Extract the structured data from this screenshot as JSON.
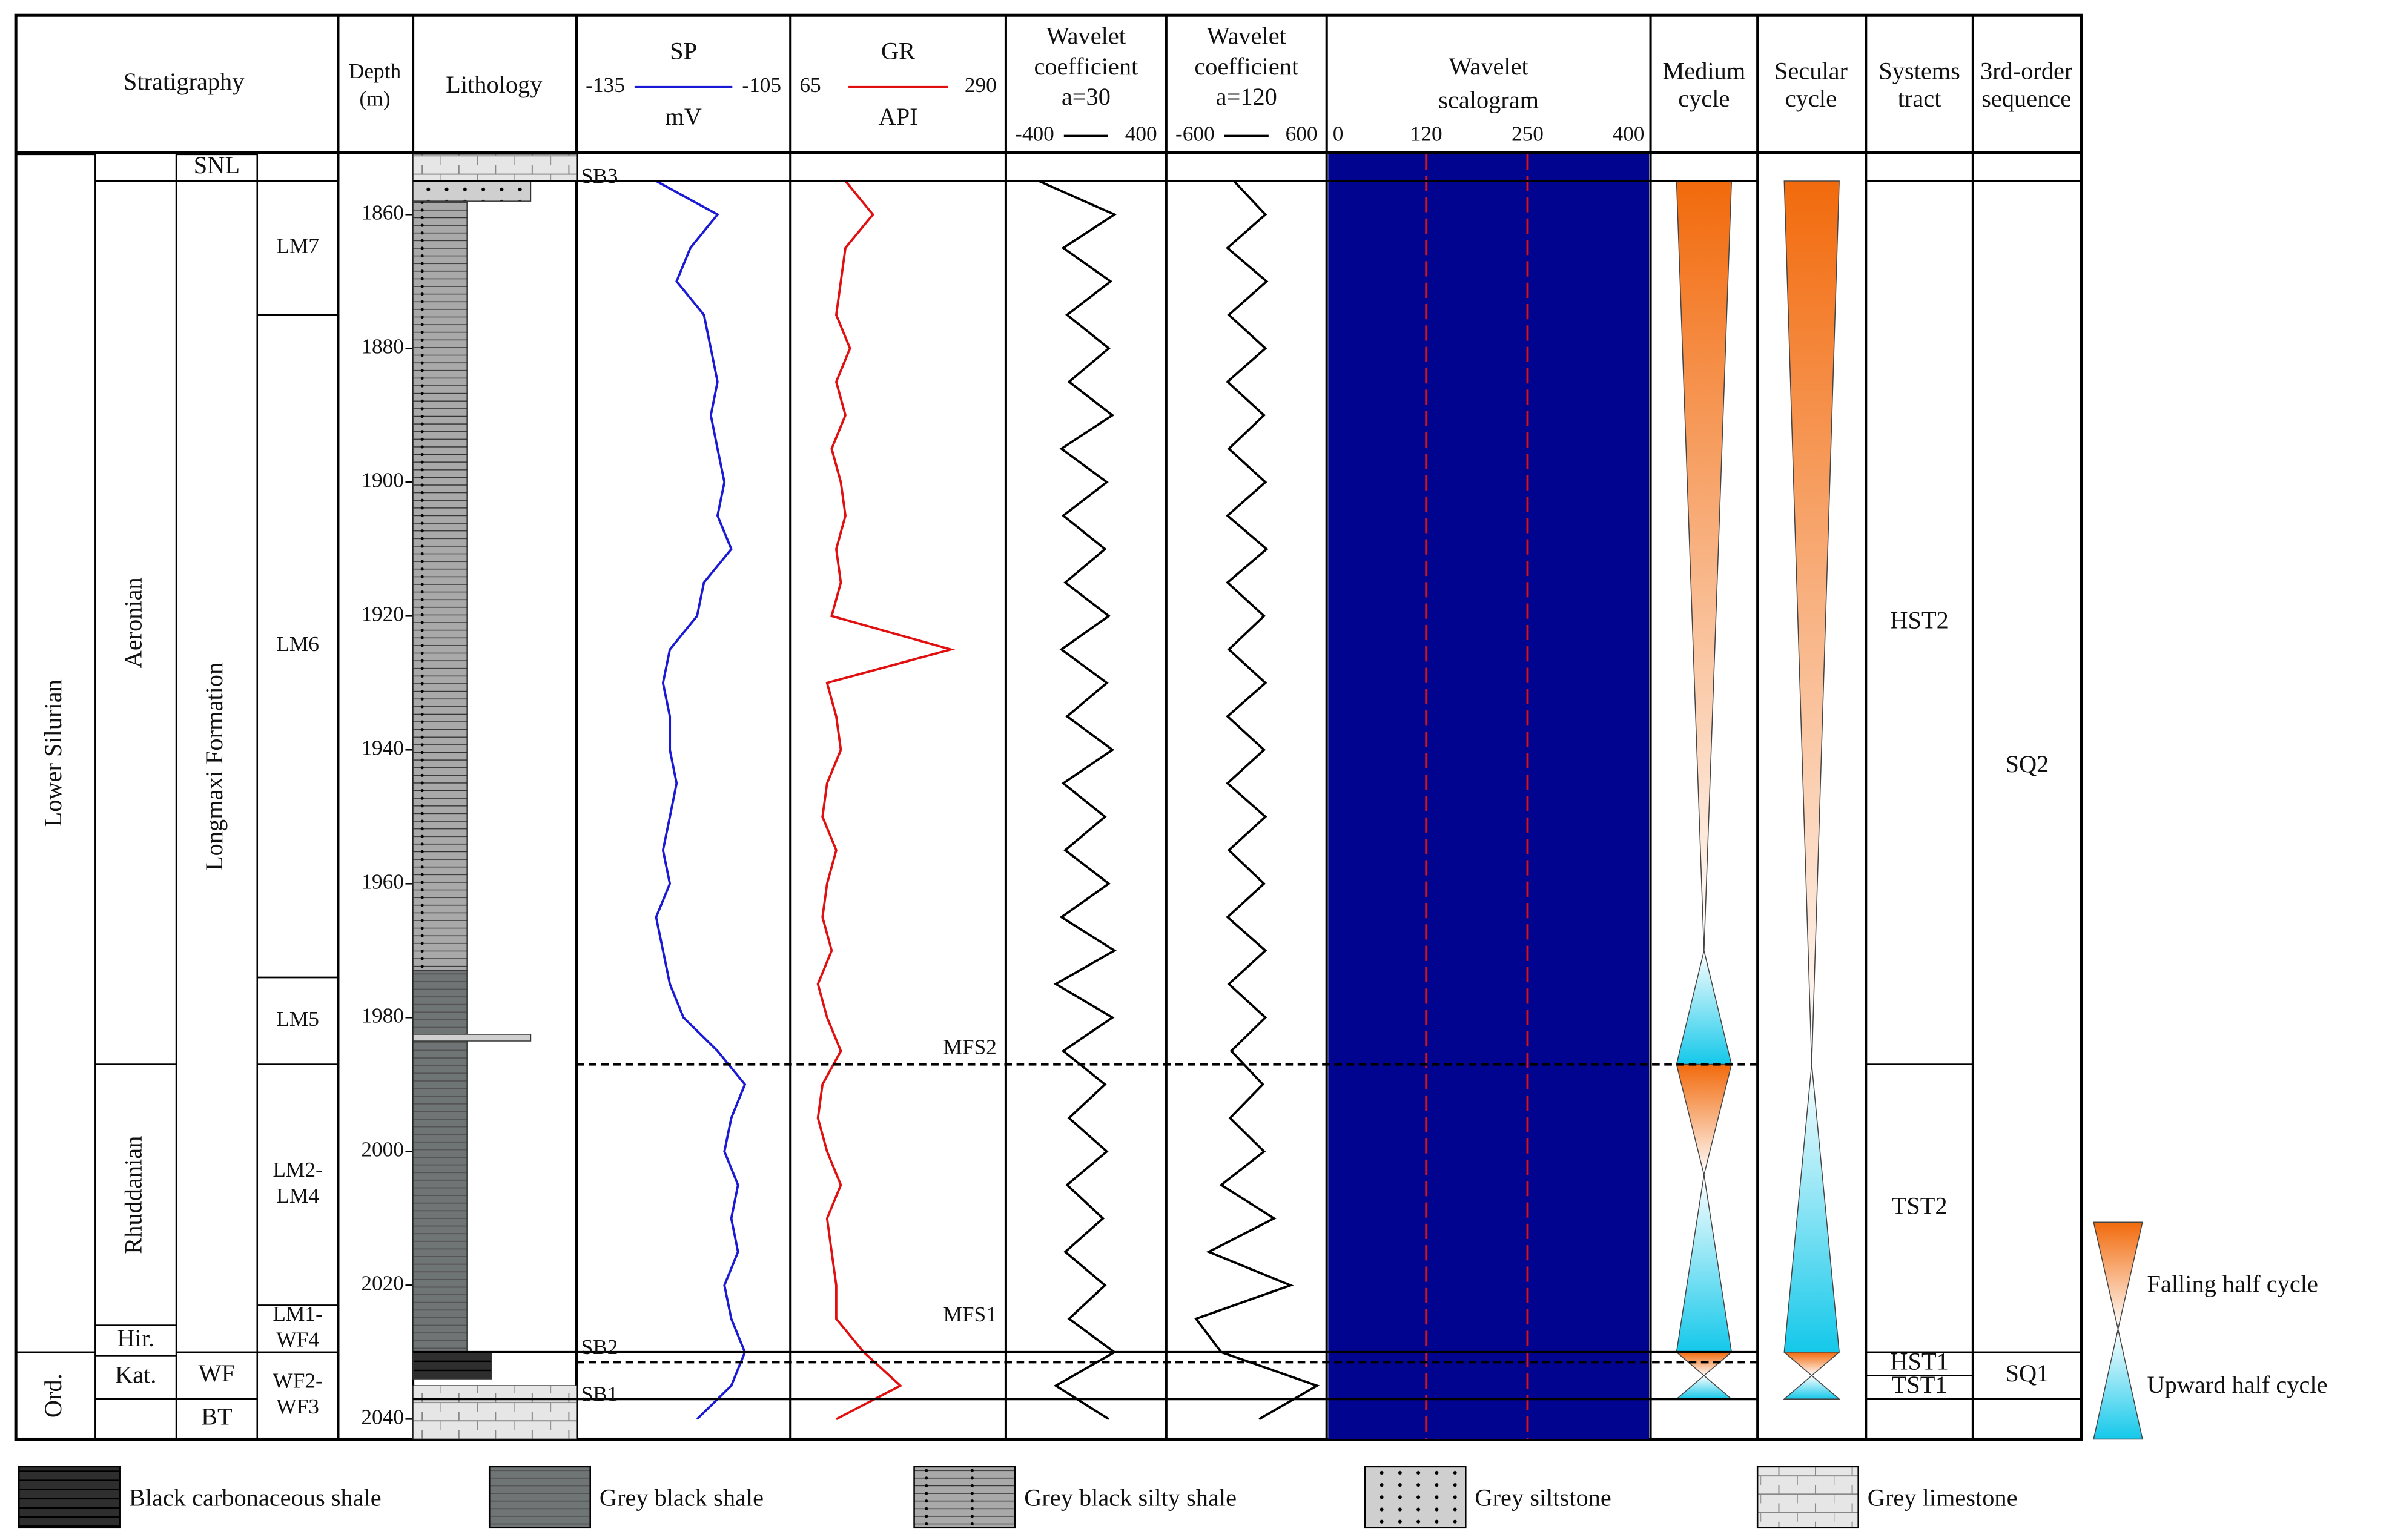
{
  "chart_data": {
    "type": "well-log",
    "headers": {
      "stratigraphy": "Stratigraphy",
      "lithology": "Lithology",
      "medium_cycle": [
        "Medium",
        "cycle"
      ],
      "secular_cycle": [
        "Secular",
        "cycle"
      ],
      "systems_tract": [
        "Systems",
        "tract"
      ],
      "sequence": [
        "3rd-order",
        "sequence"
      ]
    },
    "depth_axis": {
      "label": [
        "Depth",
        "(m)"
      ],
      "ylim": [
        1851,
        2043
      ],
      "yticks": [
        1860,
        1880,
        1900,
        1920,
        1940,
        1960,
        1980,
        2000,
        2020,
        2040
      ]
    },
    "stratigraphy": {
      "system": [
        {
          "name": "Lower Silurian",
          "top": 1851,
          "bottom": 2030
        },
        {
          "name": "Ord.",
          "top": 2030,
          "bottom": 2043
        }
      ],
      "stage": [
        {
          "name": "Aeronian",
          "top": 1855,
          "bottom": 1987
        },
        {
          "name": "Rhuddanian",
          "top": 1987,
          "bottom": 2026
        },
        {
          "name": "Hir.",
          "top": 2026,
          "bottom": 2030.5
        },
        {
          "name": "Kat.",
          "top": 2030.5,
          "bottom": 2037
        }
      ],
      "formation": [
        {
          "name": "SNL",
          "top": 1851,
          "bottom": 1855
        },
        {
          "name": "Longmaxi Formation",
          "top": 1855,
          "bottom": 2030
        },
        {
          "name": "WF",
          "top": 2030,
          "bottom": 2037
        },
        {
          "name": "BT",
          "top": 2037,
          "bottom": 2043
        }
      ],
      "member": [
        {
          "name": [
            "LM7"
          ],
          "top": 1855,
          "bottom": 1875
        },
        {
          "name": [
            "LM6"
          ],
          "top": 1875,
          "bottom": 1974
        },
        {
          "name": [
            "LM5"
          ],
          "top": 1974,
          "bottom": 1987
        },
        {
          "name": [
            "LM2-",
            "LM4"
          ],
          "top": 1987,
          "bottom": 2023
        },
        {
          "name": [
            "LM1-",
            "WF4"
          ],
          "top": 2023,
          "bottom": 2030
        },
        {
          "name": [
            "WF2-",
            "WF3"
          ],
          "top": 2030,
          "bottom": 2043
        }
      ]
    },
    "lithologies": [
      {
        "name": "Black carbonaceous shale",
        "color": "#2e2e2e"
      },
      {
        "name": "Grey black shale",
        "color": "#6f7575"
      },
      {
        "name": "Grey black silty shale",
        "color": "#a9a9a9"
      },
      {
        "name": "Grey siltstone",
        "color": "#cfcfcf"
      },
      {
        "name": "Grey limestone",
        "color": "#e6e6e6"
      }
    ],
    "lithology_column": [
      {
        "lithology": 4,
        "top": 1851,
        "bottom": 1855
      },
      {
        "lithology": 3,
        "top": 1855,
        "bottom": 1858
      },
      {
        "lithology": 2,
        "top": 1858,
        "bottom": 1973
      },
      {
        "lithology": 1,
        "top": 1973,
        "bottom": 2030
      },
      {
        "lithology": 3,
        "top": 1982.5,
        "bottom": 1983.5
      },
      {
        "lithology": 0,
        "top": 2030,
        "bottom": 2034
      },
      {
        "lithology": 4,
        "top": 2035,
        "bottom": 2043
      }
    ],
    "depths": [
      1855,
      1860,
      1865,
      1870,
      1875,
      1880,
      1885,
      1890,
      1895,
      1900,
      1905,
      1910,
      1915,
      1920,
      1925,
      1930,
      1935,
      1940,
      1945,
      1950,
      1955,
      1960,
      1965,
      1970,
      1975,
      1980,
      1985,
      1990,
      1995,
      2000,
      2005,
      2010,
      2015,
      2020,
      2025,
      2030,
      2035,
      2040
    ],
    "tracks": [
      {
        "name": [
          "SP"
        ],
        "unit": "mV",
        "color": "#1a1ad6",
        "xlim": [
          -135,
          -105
        ],
        "xticks": [
          -135,
          -105
        ],
        "values": [
          -124,
          -115,
          -119,
          -121,
          -117,
          -116,
          -115,
          -116,
          -115,
          -114,
          -115,
          -113,
          -117,
          -118,
          -122,
          -123,
          -122,
          -122,
          -121,
          -122,
          -123,
          -122,
          -124,
          -123,
          -122,
          -120,
          -115,
          -111,
          -113,
          -114,
          -112,
          -113,
          -112,
          -114,
          -113,
          -111,
          -113,
          -118
        ]
      },
      {
        "name": [
          "GR"
        ],
        "unit": "API",
        "color": "#e01010",
        "xlim": [
          65,
          290
        ],
        "xticks": [
          65,
          290
        ],
        "values": [
          120,
          150,
          120,
          115,
          110,
          125,
          110,
          120,
          105,
          115,
          120,
          110,
          115,
          105,
          235,
          100,
          110,
          115,
          100,
          95,
          110,
          100,
          95,
          105,
          90,
          100,
          115,
          95,
          90,
          100,
          115,
          100,
          105,
          110,
          110,
          140,
          180,
          110
        ]
      },
      {
        "name": [
          "Wavelet",
          "coefficient",
          "a=30"
        ],
        "color": "#000000",
        "xlim": [
          -400,
          400
        ],
        "xticks": [
          -400,
          400
        ],
        "values": [
          -250,
          150,
          -120,
          130,
          -100,
          120,
          -90,
          140,
          -130,
          110,
          -120,
          100,
          -110,
          120,
          -130,
          110,
          -100,
          140,
          -120,
          100,
          -110,
          120,
          -130,
          150,
          -160,
          140,
          -120,
          100,
          -90,
          110,
          -100,
          90,
          -110,
          100,
          -90,
          150,
          -160,
          120
        ]
      },
      {
        "name": [
          "Wavelet",
          "coefficient",
          "a=120"
        ],
        "color": "#000000",
        "xlim": [
          -600,
          600
        ],
        "xticks": [
          -600,
          600
        ],
        "values": [
          -100,
          150,
          -150,
          160,
          -140,
          150,
          -150,
          140,
          -140,
          150,
          -150,
          160,
          -150,
          140,
          -140,
          150,
          -150,
          140,
          -150,
          150,
          -140,
          140,
          -150,
          150,
          -140,
          150,
          -120,
          130,
          -130,
          140,
          -200,
          220,
          -300,
          350,
          -400,
          -200,
          560,
          100
        ]
      }
    ],
    "scalogram": {
      "name": [
        "Wavelet",
        "scalogram"
      ],
      "xlim": [
        0,
        400
      ],
      "xticks": [
        0,
        120,
        250,
        400
      ],
      "tick_colors": [
        "#000000",
        "#e01010",
        "#e01010",
        "#000000"
      ],
      "background": "#00048f"
    },
    "surfaces": [
      {
        "name": "SB3",
        "depth": 1855,
        "style": "solid"
      },
      {
        "name": "MFS2",
        "depth": 1987,
        "style": "dashed"
      },
      {
        "name": "SB2",
        "depth": 2030,
        "style": "solid"
      },
      {
        "name": "MFS1",
        "depth": 2031.5,
        "style": "dashed"
      },
      {
        "name": "SB1",
        "depth": 2037,
        "style": "solid"
      }
    ],
    "cycle_legend": [
      {
        "name": "Falling half cycle",
        "colors": [
          "#f26a0c",
          "#ffffff"
        ]
      },
      {
        "name": "Upward half cycle",
        "colors": [
          "#ffffff",
          "#14c8ea"
        ]
      }
    ],
    "medium_cycle": [
      {
        "kind": 0,
        "top": 1855,
        "bottom": 1970
      },
      {
        "kind": 1,
        "top": 1970,
        "bottom": 1987
      },
      {
        "kind": 0,
        "top": 1987,
        "bottom": 2003.5
      },
      {
        "kind": 1,
        "top": 2003.5,
        "bottom": 2030
      },
      {
        "kind": 0,
        "top": 2030,
        "bottom": 2033.5
      },
      {
        "kind": 1,
        "top": 2033.5,
        "bottom": 2037
      }
    ],
    "secular_cycle": [
      {
        "kind": 0,
        "top": 1855,
        "bottom": 1987
      },
      {
        "kind": 1,
        "top": 1987,
        "bottom": 2030
      },
      {
        "kind": 0,
        "top": 2030,
        "bottom": 2033.5
      },
      {
        "kind": 1,
        "top": 2033.5,
        "bottom": 2037
      }
    ],
    "systems_tract": [
      {
        "name": "HST2",
        "top": 1855,
        "bottom": 1987
      },
      {
        "name": "TST2",
        "top": 1987,
        "bottom": 2030
      },
      {
        "name": "HST1",
        "top": 2030,
        "bottom": 2033.5
      },
      {
        "name": "TST1",
        "top": 2033.5,
        "bottom": 2037
      }
    ],
    "sequence": [
      {
        "name": "SQ2",
        "top": 1855,
        "bottom": 2030
      },
      {
        "name": "SQ1",
        "top": 2030,
        "bottom": 2037
      }
    ]
  }
}
